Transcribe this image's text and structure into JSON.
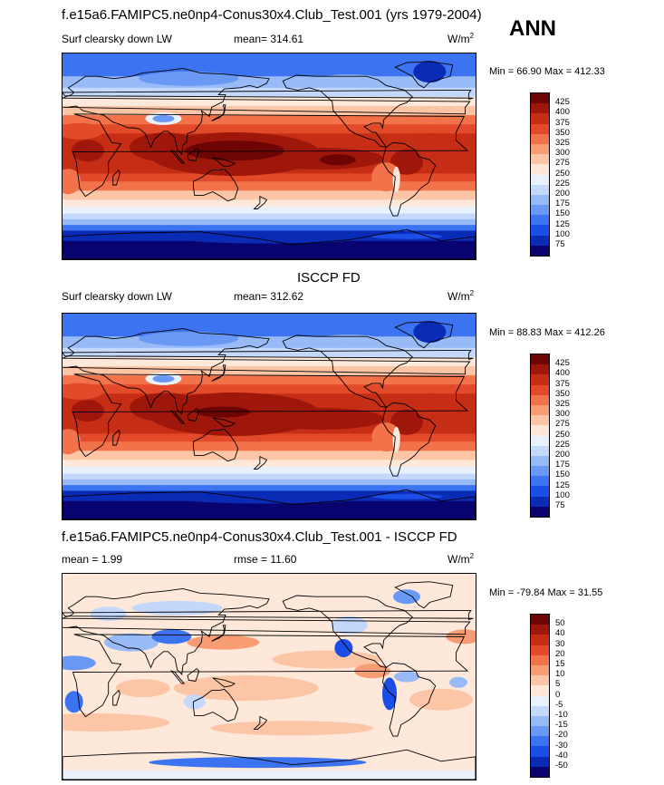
{
  "figure": {
    "season": "ANN"
  },
  "colors": {
    "abs_scale": [
      "#08036e",
      "#0a2bb5",
      "#1a4ee6",
      "#3b73f0",
      "#6a98f5",
      "#98bbf8",
      "#c4d8fb",
      "#e9f1fd",
      "#fde8da",
      "#fcc5a6",
      "#f89c74",
      "#f27249",
      "#e24a2a",
      "#c52d14",
      "#9e170a",
      "#6e0505"
    ],
    "diff_scale": [
      "#08036e",
      "#0a2bb5",
      "#1a4ee6",
      "#3b73f0",
      "#6a98f5",
      "#98bbf8",
      "#c4d8fb",
      "#e9f1fd",
      "#fde8da",
      "#fcc5a6",
      "#f89c74",
      "#f27249",
      "#e24a2a",
      "#c52d14",
      "#9e170a",
      "#6e0505"
    ]
  },
  "chart_data": [
    {
      "type": "heatmap",
      "title": "f.e15a6.FAMIPC5.ne0np4-Conus30x4.Club_Test.001 (yrs 1979-2004)",
      "left_label": "Surf clearsky down LW",
      "stat_text": "mean= 314.61",
      "units_base": "W/m",
      "units_exp": "2",
      "minmax": "Min =  66.90 Max = 412.33",
      "contour_levels": [
        "425",
        "400",
        "375",
        "350",
        "325",
        "300",
        "275",
        "250",
        "225",
        "200",
        "175",
        "150",
        "125",
        "100",
        "75"
      ]
    },
    {
      "type": "heatmap",
      "title": "ISCCP FD",
      "left_label": "Surf clearsky down LW",
      "stat_text": "mean= 312.62",
      "units_base": "W/m",
      "units_exp": "2",
      "minmax": "Min =  88.83 Max = 412.26",
      "contour_levels": [
        "425",
        "400",
        "375",
        "350",
        "325",
        "300",
        "275",
        "250",
        "225",
        "200",
        "175",
        "150",
        "125",
        "100",
        "75"
      ]
    },
    {
      "type": "heatmap",
      "title": "f.e15a6.FAMIPC5.ne0np4-Conus30x4.Club_Test.001 - ISCCP FD",
      "left_label": "mean =   1.99",
      "stat_text": "rmse =  11.60",
      "units_base": "W/m",
      "units_exp": "2",
      "minmax": "Min = -79.84 Max =  31.55",
      "contour_levels": [
        "50",
        "40",
        "30",
        "20",
        "15",
        "10",
        "5",
        "0",
        "-5",
        "-10",
        "-15",
        "-20",
        "-30",
        "-40",
        "-50"
      ]
    }
  ]
}
